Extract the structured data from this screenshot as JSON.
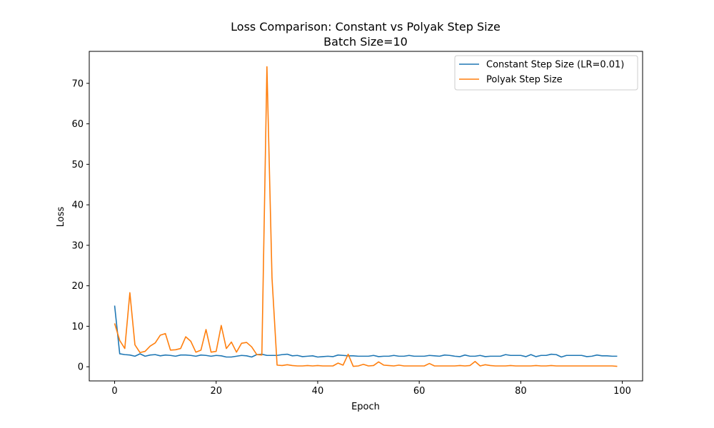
{
  "chart_data": {
    "type": "line",
    "title": "Loss Comparison: Constant vs Polyak Step Size",
    "subtitle": "Batch Size=10",
    "xlabel": "Epoch",
    "ylabel": "Loss",
    "xlim": [
      -5,
      104
    ],
    "ylim": [
      -3.5,
      77.9
    ],
    "xticks": [
      0,
      20,
      40,
      60,
      80,
      100
    ],
    "yticks": [
      0,
      10,
      20,
      30,
      40,
      50,
      60,
      70
    ],
    "grid": false,
    "legend_position": "top-right",
    "series": [
      {
        "name": "Constant Step Size (LR=0.01)",
        "color": "#1f77b4",
        "values": [
          15.1,
          3.2,
          3.0,
          2.9,
          2.6,
          3.2,
          2.6,
          2.9,
          3.0,
          2.7,
          2.9,
          2.8,
          2.6,
          2.9,
          2.9,
          2.8,
          2.6,
          2.9,
          2.8,
          2.6,
          2.8,
          2.7,
          2.4,
          2.4,
          2.6,
          2.8,
          2.7,
          2.4,
          3.0,
          3.1,
          2.8,
          2.8,
          2.8,
          3.0,
          3.1,
          2.7,
          2.8,
          2.5,
          2.6,
          2.7,
          2.4,
          2.5,
          2.6,
          2.5,
          2.9,
          2.8,
          2.7,
          2.7,
          2.6,
          2.6,
          2.6,
          2.8,
          2.5,
          2.6,
          2.6,
          2.8,
          2.6,
          2.6,
          2.8,
          2.6,
          2.6,
          2.6,
          2.8,
          2.7,
          2.6,
          2.9,
          2.8,
          2.6,
          2.5,
          2.9,
          2.6,
          2.6,
          2.8,
          2.5,
          2.6,
          2.6,
          2.6,
          3.0,
          2.8,
          2.8,
          2.8,
          2.5,
          3.0,
          2.5,
          2.8,
          2.8,
          3.1,
          3.0,
          2.4,
          2.8,
          2.8,
          2.8,
          2.8,
          2.5,
          2.6,
          2.9,
          2.7,
          2.7,
          2.6,
          2.6
        ]
      },
      {
        "name": "Polyak Step Size",
        "color": "#ff7f0e",
        "values": [
          10.7,
          6.5,
          4.5,
          18.3,
          5.4,
          3.5,
          3.8,
          5.1,
          5.9,
          7.8,
          8.2,
          4.1,
          4.2,
          4.5,
          7.4,
          6.3,
          3.6,
          4.1,
          9.2,
          3.6,
          3.8,
          10.2,
          4.5,
          6.1,
          3.6,
          5.8,
          6.0,
          4.9,
          3.0,
          2.9,
          74.1,
          21.9,
          0.4,
          0.3,
          0.5,
          0.3,
          0.2,
          0.2,
          0.3,
          0.2,
          0.3,
          0.2,
          0.2,
          0.2,
          0.9,
          0.4,
          3.1,
          0.1,
          0.2,
          0.6,
          0.2,
          0.3,
          1.2,
          0.4,
          0.3,
          0.2,
          0.4,
          0.2,
          0.2,
          0.2,
          0.2,
          0.2,
          0.8,
          0.2,
          0.2,
          0.2,
          0.2,
          0.2,
          0.3,
          0.2,
          0.3,
          1.3,
          0.2,
          0.5,
          0.3,
          0.2,
          0.2,
          0.2,
          0.3,
          0.2,
          0.2,
          0.2,
          0.2,
          0.3,
          0.2,
          0.2,
          0.3,
          0.2,
          0.2,
          0.2,
          0.2,
          0.2,
          0.2,
          0.2,
          0.2,
          0.2,
          0.2,
          0.2,
          0.2,
          0.1
        ]
      }
    ]
  }
}
